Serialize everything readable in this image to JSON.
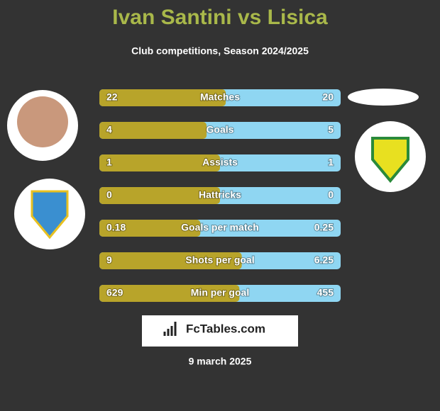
{
  "header": {
    "title": "Ivan Santini vs Lisica",
    "subtitle": "Club competitions, Season 2024/2025"
  },
  "colors": {
    "left": "#b8a42a",
    "right": "#8fd6f2"
  },
  "rows": [
    {
      "label": "Matches",
      "left": 22,
      "right": 20
    },
    {
      "label": "Goals",
      "left": 4,
      "right": 5
    },
    {
      "label": "Assists",
      "left": 1,
      "right": 1
    },
    {
      "label": "Hattricks",
      "left": 0,
      "right": 0
    },
    {
      "label": "Goals per match",
      "left": 0.18,
      "right": 0.25
    },
    {
      "label": "Shots per goal",
      "left": 9,
      "right": 6.25
    },
    {
      "label": "Min per goal",
      "left": 629,
      "right": 455
    }
  ],
  "brand": "FcTables.com",
  "date": "9 march 2025"
}
